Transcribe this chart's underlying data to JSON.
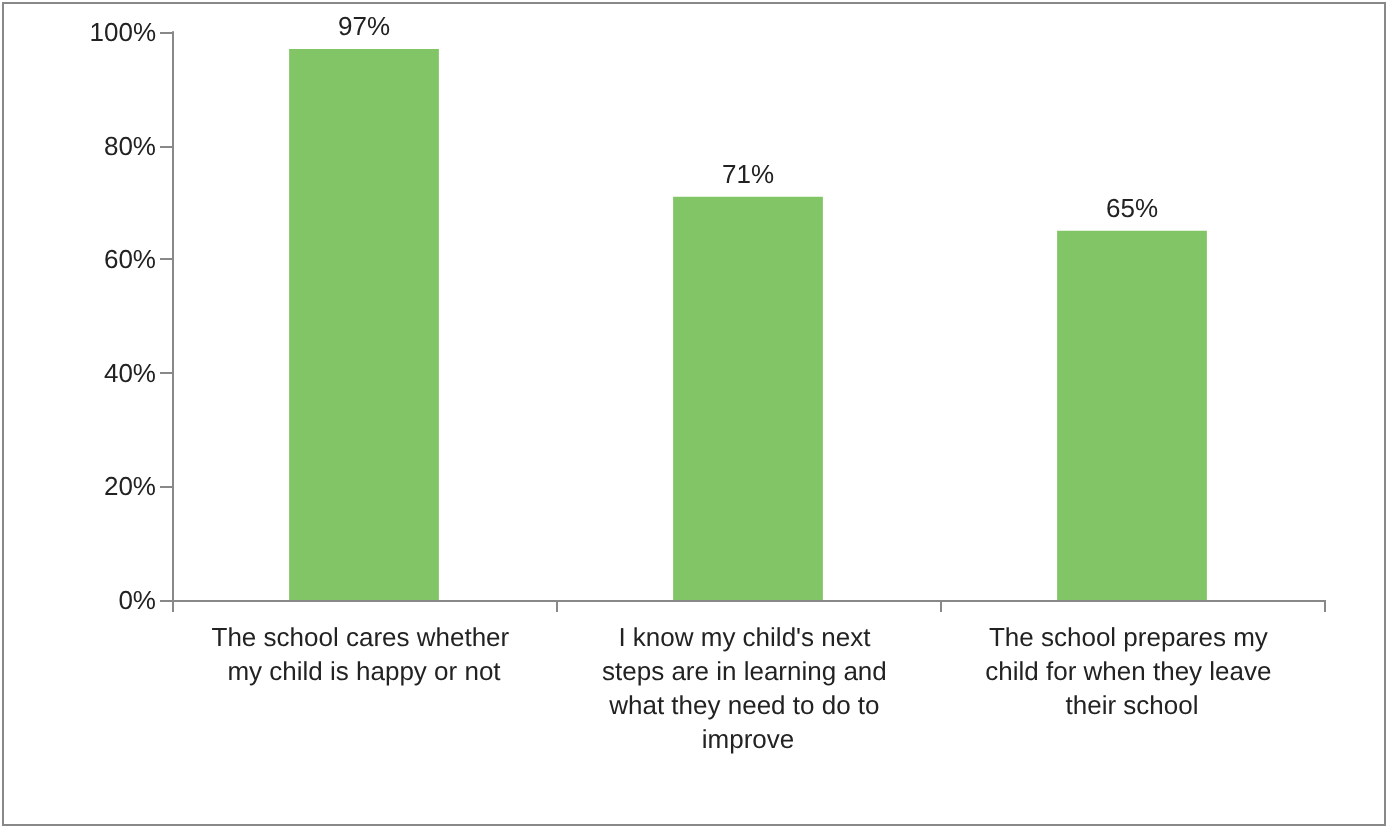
{
  "chart_data": {
    "type": "bar",
    "categories": [
      "The school cares whether my child is happy or not",
      "I know my child's next steps are in learning and what they need to do to improve",
      "The school prepares my child for when they leave their school"
    ],
    "values": [
      97,
      71,
      65
    ],
    "value_labels": [
      "97%",
      "71%",
      "65%"
    ],
    "color": "#82c566",
    "ylim": [
      0,
      100
    ],
    "yticks": [
      {
        "value": 0,
        "label": "0%"
      },
      {
        "value": 20,
        "label": "20%"
      },
      {
        "value": 40,
        "label": "40%"
      },
      {
        "value": 60,
        "label": "60%"
      },
      {
        "value": 80,
        "label": "80%"
      },
      {
        "value": 100,
        "label": "100%"
      }
    ],
    "grid": false
  }
}
